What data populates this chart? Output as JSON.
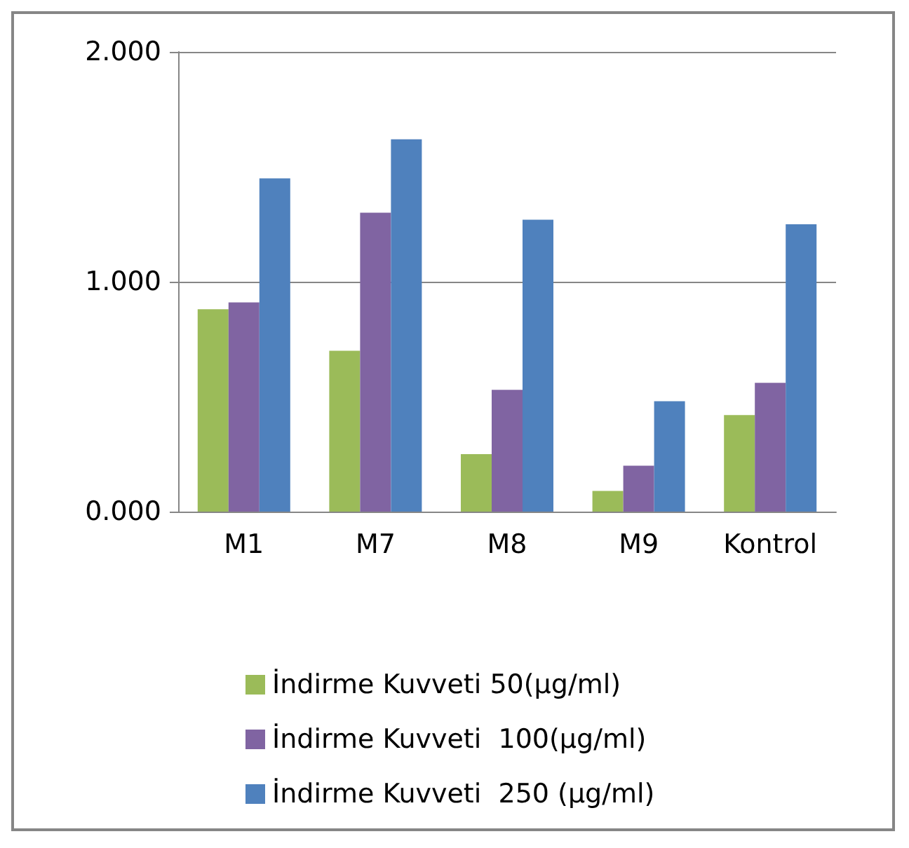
{
  "chart_data": {
    "type": "bar",
    "categories": [
      "M1",
      "M7",
      "M8",
      "M9",
      "Kontrol"
    ],
    "series": [
      {
        "name": "İndirme Kuvveti 50(µg/ml)",
        "color": "#9bbb59",
        "values": [
          0.88,
          0.7,
          0.25,
          0.09,
          0.42
        ]
      },
      {
        "name": "İndirme Kuvveti  100(µg/ml)",
        "color": "#8064a2",
        "values": [
          0.91,
          1.3,
          0.53,
          0.2,
          0.56
        ]
      },
      {
        "name": "İndirme Kuvveti  250 (µg/ml)",
        "color": "#4f81bd",
        "values": [
          1.45,
          1.62,
          1.27,
          0.48,
          1.25
        ]
      }
    ],
    "ylim": [
      0,
      2
    ],
    "yticks": [
      {
        "value": 0,
        "label": "0.000"
      },
      {
        "value": 1,
        "label": "1.000"
      },
      {
        "value": 2,
        "label": "2.000"
      }
    ],
    "grid": "y",
    "legend": "bottom"
  }
}
